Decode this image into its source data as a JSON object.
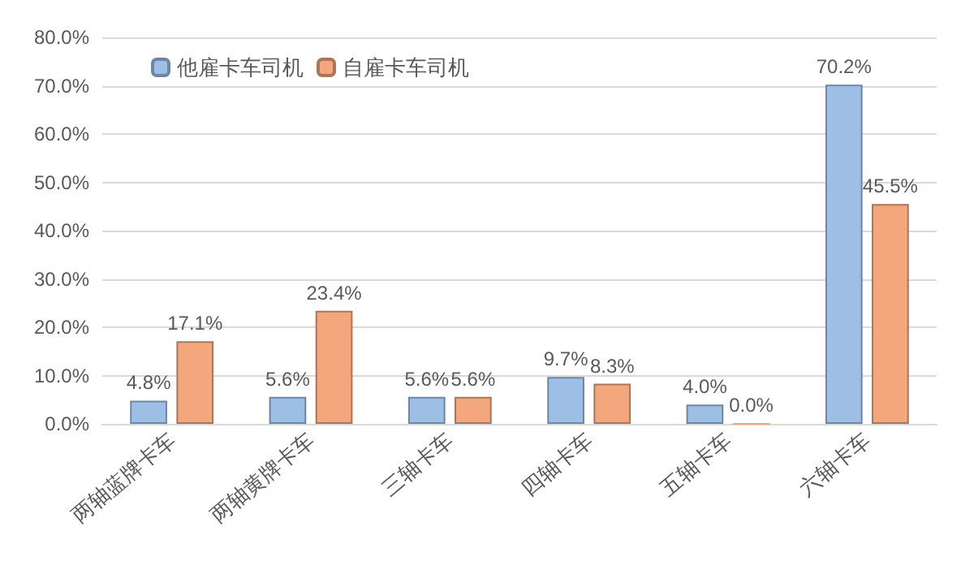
{
  "chart_data": {
    "type": "bar",
    "categories": [
      "两轴蓝牌卡车",
      "两轴黄牌卡车",
      "三轴卡车",
      "四轴卡车",
      "五轴卡车",
      "六轴卡车"
    ],
    "series": [
      {
        "name": "他雇卡车司机",
        "color": "#9dbfe6",
        "values": [
          4.8,
          5.6,
          5.6,
          9.7,
          4.0,
          70.2
        ],
        "value_labels": [
          "4.8%",
          "5.6%",
          "5.6%",
          "9.7%",
          "4.0%",
          "70.2%"
        ]
      },
      {
        "name": "自雇卡车司机",
        "color": "#f4a77c",
        "values": [
          17.1,
          23.4,
          5.6,
          8.3,
          0.0,
          45.5
        ],
        "value_labels": [
          "17.1%",
          "23.4%",
          "5.6%",
          "8.3%",
          "0.0%",
          "45.5%"
        ]
      }
    ],
    "ylim": [
      0,
      80
    ],
    "yticks": [
      {
        "value": 0,
        "label": "0.0%"
      },
      {
        "value": 10,
        "label": "10.0%"
      },
      {
        "value": 20,
        "label": "20.0%"
      },
      {
        "value": 30,
        "label": "30.0%"
      },
      {
        "value": 40,
        "label": "40.0%"
      },
      {
        "value": 50,
        "label": "50.0%"
      },
      {
        "value": 60,
        "label": "60.0%"
      },
      {
        "value": 70,
        "label": "70.0%"
      },
      {
        "value": 80,
        "label": "80.0%"
      }
    ],
    "grid": "y",
    "legend": "top left"
  }
}
